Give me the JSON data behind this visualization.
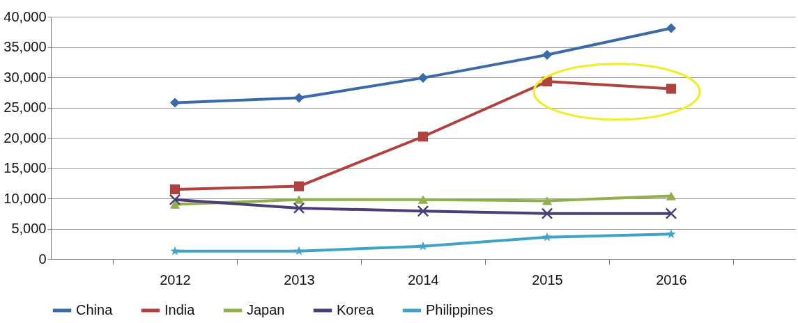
{
  "chart_data": {
    "type": "line",
    "categories": [
      "2012",
      "2013",
      "2014",
      "2015",
      "2016"
    ],
    "series": [
      {
        "name": "China",
        "color": "#3a6aa8",
        "marker": "diamond",
        "values": [
          25800,
          26600,
          29900,
          33700,
          38100
        ]
      },
      {
        "name": "India",
        "color": "#b0413e",
        "marker": "square",
        "values": [
          11500,
          12000,
          20200,
          29300,
          28100
        ]
      },
      {
        "name": "Japan",
        "color": "#8fb04a",
        "marker": "triangle",
        "values": [
          9000,
          9800,
          9800,
          9600,
          10400
        ]
      },
      {
        "name": "Korea",
        "color": "#4a3e78",
        "marker": "cross",
        "values": [
          9800,
          8400,
          7900,
          7500,
          7500
        ]
      },
      {
        "name": "Philippines",
        "color": "#3fa3c6",
        "marker": "star",
        "values": [
          1300,
          1300,
          2100,
          3600,
          4100
        ]
      }
    ],
    "ylim": [
      0,
      40000
    ],
    "yticks": [
      0,
      {
        "value": 5000,
        "label": "5,000"
      },
      {
        "value": 10000,
        "label": "10,000"
      },
      {
        "value": 15000,
        "label": "15,000"
      },
      {
        "value": 20000,
        "label": "20,000"
      },
      {
        "value": 25000,
        "label": "25,000"
      },
      {
        "value": 30000,
        "label": "30,000"
      },
      {
        "value": 35000,
        "label": "35,000"
      },
      {
        "value": 40000,
        "label": "40,000"
      }
    ],
    "grid": "y",
    "legend": "bottom",
    "line_style": "solid"
  }
}
